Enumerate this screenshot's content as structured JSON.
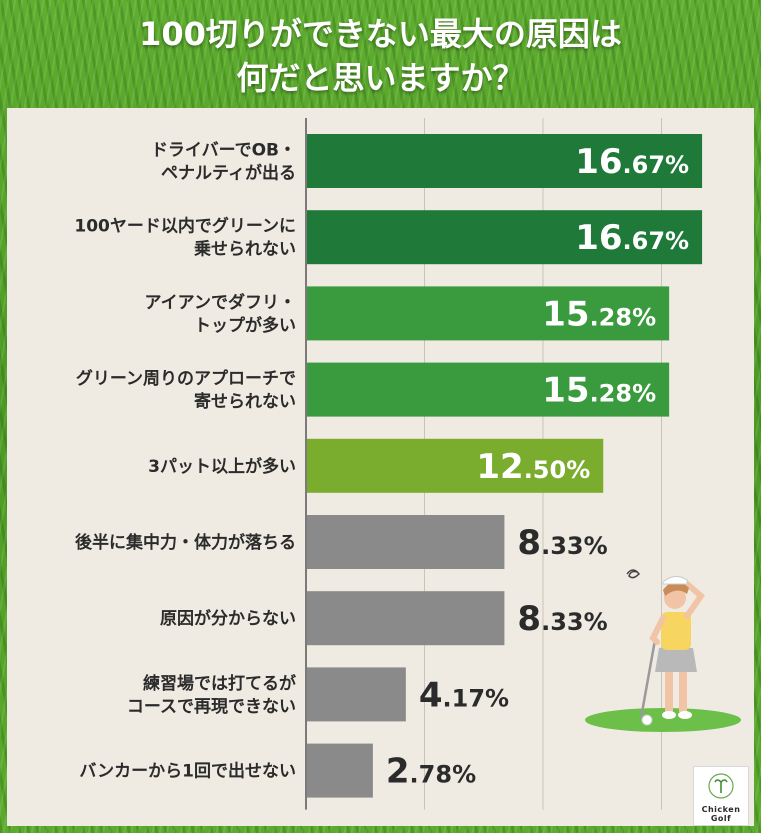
{
  "title": {
    "line1": "100切りができない最大の原因は",
    "line2": "何だと思いますか？"
  },
  "colors": {
    "dark_green": "#1f7a3a",
    "mid_green": "#3a9a3e",
    "light_green": "#7aac2e",
    "gray": "#8a8a8a",
    "panel_bg": "#efebe2"
  },
  "chart_data": {
    "type": "bar",
    "orientation": "horizontal",
    "title": "100切りができない最大の原因は何だと思いますか？",
    "categories": [
      [
        "ドライバーでOB・",
        "ペナルティが出る"
      ],
      [
        "100ヤード以内でグリーンに",
        "乗せられない"
      ],
      [
        "アイアンでダフリ・",
        "トップが多い"
      ],
      [
        "グリーン周りのアプローチで",
        "寄せられない"
      ],
      [
        "3パット以上が多い"
      ],
      [
        "後半に集中力・体力が落ちる"
      ],
      [
        "原因が分からない"
      ],
      [
        "練習場では打てるが",
        "コースで再現できない"
      ],
      [
        "バンカーから1回で出せない"
      ]
    ],
    "values": [
      16.67,
      16.67,
      15.28,
      15.28,
      12.5,
      8.33,
      8.33,
      4.17,
      2.78
    ],
    "value_labels": [
      "16.67%",
      "16.67%",
      "15.28%",
      "15.28%",
      "12.50%",
      "8.33%",
      "8.33%",
      "4.17%",
      "2.78%"
    ],
    "bar_colors": [
      "#1f7a3a",
      "#1f7a3a",
      "#3a9a3e",
      "#3a9a3e",
      "#7aac2e",
      "#8a8a8a",
      "#8a8a8a",
      "#8a8a8a",
      "#8a8a8a"
    ],
    "label_inside": [
      true,
      true,
      true,
      true,
      true,
      false,
      false,
      false,
      false
    ],
    "xlim": [
      0,
      20
    ],
    "grid": true,
    "unit": "%"
  },
  "logo": {
    "text": "Chicken Golf",
    "line1": "Chicken",
    "line2": "Golf"
  }
}
